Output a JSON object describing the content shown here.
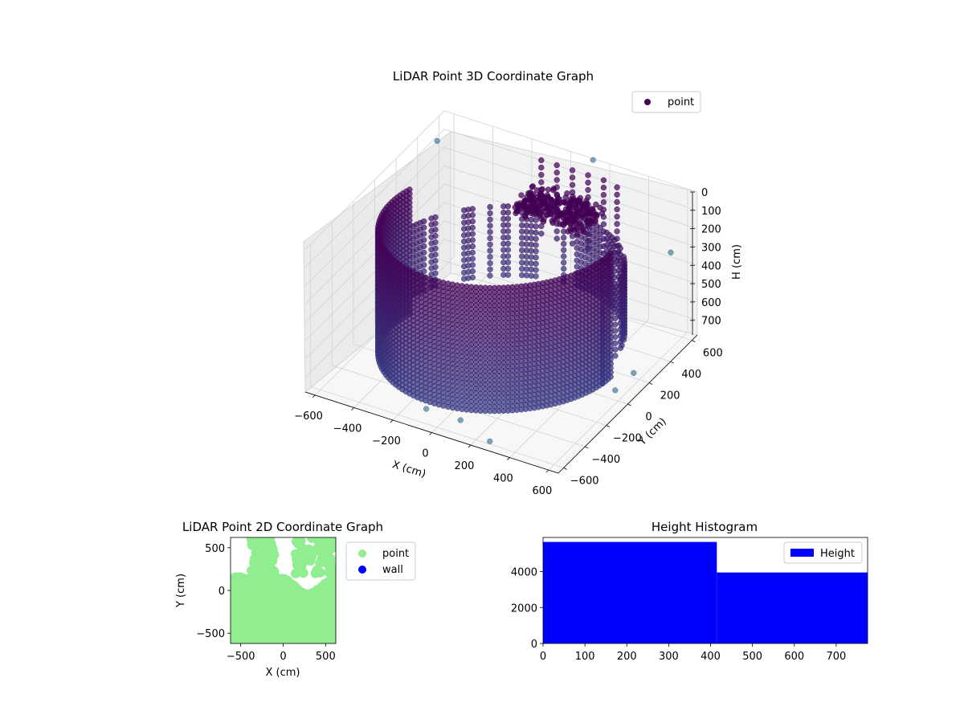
{
  "chart_data": [
    {
      "type": "scatter",
      "subtype": "3d",
      "title": "LiDAR Point 3D Coordinate Graph",
      "xlabel": "X (cm)",
      "ylabel": "Y (cm)",
      "zlabel": "H (cm)",
      "xlim": [
        -650,
        650
      ],
      "ylim": [
        -650,
        650
      ],
      "zlim": [
        0,
        780
      ],
      "z_inverted": true,
      "x_ticks": [
        "−600",
        "−400",
        "−200",
        "0",
        "200",
        "400",
        "600"
      ],
      "y_ticks": [
        "−600",
        "−400",
        "−200",
        "0",
        "200",
        "400",
        "600"
      ],
      "z_ticks": [
        "0",
        "100",
        "200",
        "300",
        "400",
        "500",
        "600",
        "700"
      ],
      "legend": {
        "position": "upper-right",
        "entries": [
          {
            "label": "point",
            "color": "#440154"
          }
        ]
      },
      "colormap": "viridis",
      "grid": true,
      "series": [
        {
          "name": "point",
          "description": "Vertical columns of points forming a curved wall ring of radius about 500 cm, height 0 to 700 cm, with a dense cluster near the centre-back at height about 150 cm"
        }
      ]
    },
    {
      "type": "scatter",
      "title": "LiDAR Point 2D Coordinate Graph",
      "xlabel": "X (cm)",
      "ylabel": "Y (cm)",
      "xlim": [
        -620,
        620
      ],
      "ylim": [
        -620,
        620
      ],
      "x_ticks": [
        "−500",
        "0",
        "500"
      ],
      "y_ticks": [
        "−500",
        "0",
        "500"
      ],
      "legend": {
        "position": "outside-right",
        "entries": [
          {
            "label": "point",
            "color": "#90ee90"
          },
          {
            "label": "wall",
            "color": "#0000ff"
          }
        ]
      },
      "series": [
        {
          "name": "point",
          "color": "#90ee90",
          "description": "Dense green points filling most of the plot below Y = 0 plus scattered clusters above"
        },
        {
          "name": "wall",
          "color": "#0000ff",
          "points": []
        }
      ]
    },
    {
      "type": "bar",
      "subtype": "histogram",
      "title": "Height Histogram",
      "xlabel": "",
      "ylabel": "",
      "xlim": [
        0,
        775
      ],
      "ylim": [
        0,
        5900
      ],
      "x_ticks": [
        "0",
        "100",
        "200",
        "300",
        "400",
        "500",
        "600",
        "700"
      ],
      "y_ticks": [
        "0",
        "2000",
        "4000"
      ],
      "bins": [
        {
          "from": 0,
          "to": 415,
          "count": 5650
        },
        {
          "from": 415,
          "to": 775,
          "count": 3950
        }
      ],
      "legend": {
        "position": "upper-right",
        "entries": [
          {
            "label": "Height",
            "color": "#0000ff"
          }
        ]
      },
      "series": [
        {
          "name": "Height",
          "color": "#0000ff"
        }
      ]
    }
  ]
}
